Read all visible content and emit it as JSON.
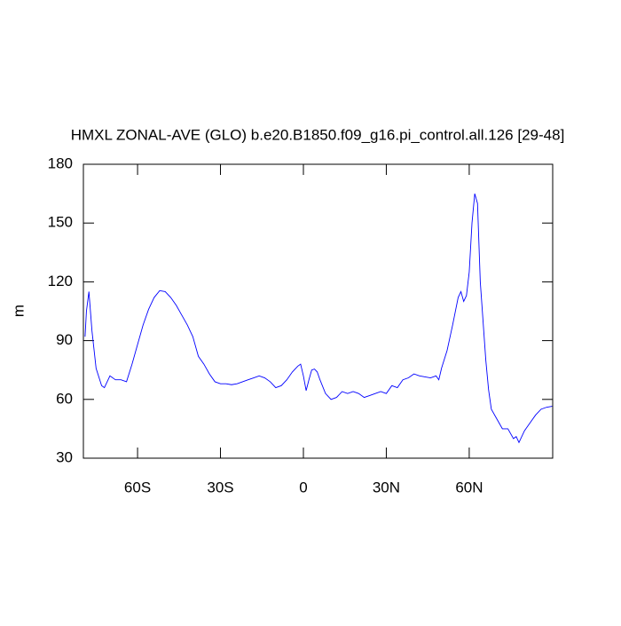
{
  "chart_data": {
    "type": "line",
    "title": "HMXL ZONAL-AVE (GLO) b.e20.B1850.f09_g16.pi_control.all.126 [29-48]",
    "ylabel": "m",
    "color": "#0000ff",
    "x": [
      -79,
      -78.5,
      -77.6,
      -76.5,
      -75,
      -73,
      -72,
      -70,
      -68,
      -66,
      -64,
      -62,
      -60,
      -58,
      -56,
      -54,
      -52,
      -50,
      -48,
      -46,
      -44,
      -42,
      -40,
      -38,
      -36,
      -34,
      -32,
      -30,
      -28,
      -26,
      -24,
      -22,
      -20,
      -18,
      -16,
      -14,
      -12,
      -10,
      -8,
      -6,
      -4,
      -2,
      -1,
      0,
      1,
      2,
      3,
      4,
      5,
      6,
      8,
      10,
      12,
      14,
      16,
      18,
      20,
      22,
      24,
      26,
      28,
      30,
      32,
      34,
      36,
      38,
      40,
      42,
      44,
      46,
      48,
      49,
      50,
      52,
      54,
      56,
      57,
      58,
      59,
      60,
      61,
      62,
      63,
      64,
      65,
      66,
      67,
      68,
      70,
      72,
      74,
      76,
      77,
      78,
      80,
      82,
      84,
      86,
      88,
      90
    ],
    "values": [
      92,
      105,
      115,
      95,
      75.8,
      67,
      66,
      72,
      70,
      70,
      69,
      78,
      88,
      98,
      106,
      112,
      115.5,
      115,
      112,
      108,
      103,
      98,
      92,
      82,
      78,
      73,
      69,
      68,
      68,
      67.5,
      68,
      69,
      70,
      71,
      72,
      71,
      69,
      66,
      67,
      70,
      74,
      77,
      78,
      72,
      64.5,
      70,
      75,
      75.5,
      74,
      70,
      63,
      60,
      61,
      64,
      63,
      64,
      63,
      61,
      62,
      63,
      64,
      63,
      67,
      66,
      70,
      71,
      73,
      72,
      71.5,
      71,
      72,
      70,
      76,
      85,
      98,
      112,
      115,
      110,
      113,
      125,
      150,
      165,
      160,
      120,
      100,
      80,
      65,
      55,
      50,
      45,
      45,
      40,
      41,
      38,
      44,
      48,
      52,
      55,
      56,
      56.5
    ],
    "xlim": [
      -79.6,
      90.2
    ],
    "xticks": [
      {
        "value": -60,
        "label": "60S"
      },
      {
        "value": -30,
        "label": "30S"
      },
      0,
      {
        "value": 30,
        "label": "30N"
      },
      {
        "value": 60,
        "label": "60N"
      }
    ],
    "ylim": [
      30,
      180
    ],
    "yticks": [
      30,
      60,
      90,
      120,
      150,
      180
    ]
  }
}
